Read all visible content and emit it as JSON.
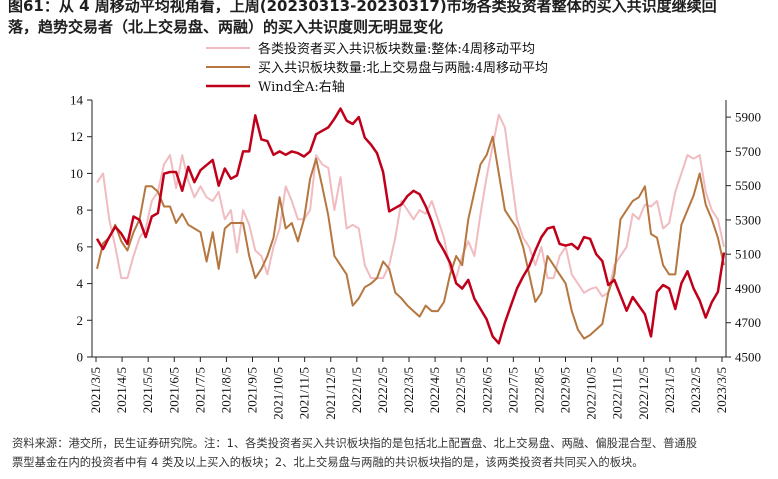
{
  "title": {
    "line1": "图61：从 4 周移动平均视角看，上周(20230313-20230317)市场各类投资者整体的买入共识度继续回",
    "line2": "落，趋势交易者（北上交易盘、两融）的买入共识度则无明显变化"
  },
  "footnote": {
    "line1": "资料来源：港交所，民生证券研究院。注：1、各类投资者买入共识板块指的是包括北上配置盘、北上交易盘、两融、偏股混合型、普通股",
    "line2": "票型基金在内的投资者中有 4 类及以上买入的板块；2、北上交易盘与两融的共识板块指的是，该两类投资者共同买入的板块。"
  },
  "colors": {
    "overall": "#f0bcc1",
    "north_margin": "#b5773f",
    "wind": "#c0001a"
  },
  "chart_data": {
    "type": "line",
    "x_tick_labels": [
      "2021/3/5",
      "2021/4/5",
      "2021/5/5",
      "2021/6/5",
      "2021/7/5",
      "2021/8/5",
      "2021/9/5",
      "2021/10/5",
      "2021/11/5",
      "2021/12/5",
      "2022/1/5",
      "2022/2/5",
      "2022/3/5",
      "2022/4/5",
      "2022/5/5",
      "2022/6/5",
      "2022/7/5",
      "2022/8/5",
      "2022/9/5",
      "2022/10/5",
      "2022/11/5",
      "2022/12/5",
      "2023/1/5",
      "2023/2/5",
      "2023/3/5"
    ],
    "left_axis": {
      "min": 0,
      "max": 14,
      "ticks": [
        0,
        2,
        4,
        6,
        8,
        10,
        12,
        14
      ]
    },
    "right_axis": {
      "min": 4500,
      "max": 6000,
      "ticks": [
        4500,
        4700,
        4900,
        5100,
        5300,
        5500,
        5700,
        5900
      ]
    },
    "series": [
      {
        "name": "各类投资者买入共识板块数量:整体:4周移动平均",
        "axis": "left",
        "values": [
          9.5,
          10.0,
          7.5,
          6.0,
          4.3,
          4.3,
          5.5,
          6.5,
          7.0,
          8.5,
          9.0,
          10.5,
          11.0,
          9.2,
          11.0,
          9.6,
          8.7,
          9.3,
          8.7,
          8.5,
          9.0,
          7.5,
          8.0,
          5.7,
          8.0,
          7.2,
          5.8,
          5.5,
          4.5,
          6.0,
          7.0,
          9.3,
          8.5,
          7.5,
          7.5,
          8.0,
          11.0,
          10.5,
          10.3,
          8.0,
          9.8,
          7.0,
          7.2,
          7.0,
          5.0,
          4.3,
          4.3,
          4.3,
          5.0,
          6.5,
          8.5,
          8.0,
          7.5,
          8.0,
          7.8,
          8.5,
          7.5,
          6.5,
          4.8,
          4.3,
          5.5,
          6.3,
          5.5,
          7.8,
          9.8,
          11.5,
          13.2,
          12.5,
          10.0,
          7.5,
          6.5,
          6.0,
          5.0,
          6.0,
          4.3,
          4.3,
          5.5,
          6.0,
          4.5,
          4.0,
          3.5,
          3.7,
          3.8,
          3.3,
          3.5,
          5.0,
          5.5,
          6.0,
          7.8,
          7.5,
          8.3,
          8.2,
          8.5,
          7.0,
          7.3,
          9.0,
          10.0,
          11.0,
          10.8,
          11.0,
          9.0,
          8.0,
          7.5,
          6.0
        ]
      },
      {
        "name": "买入共识板块数量:北上交易盘与两融:4周移动平均",
        "axis": "left",
        "values": [
          4.8,
          6.2,
          6.5,
          7.2,
          6.3,
          5.8,
          6.8,
          7.5,
          9.3,
          9.3,
          9.0,
          8.2,
          8.2,
          7.3,
          7.8,
          7.2,
          7.0,
          6.8,
          5.2,
          6.8,
          4.8,
          7.0,
          7.3,
          7.3,
          7.3,
          5.5,
          4.3,
          4.8,
          5.5,
          6.5,
          8.7,
          7.0,
          7.3,
          6.3,
          7.5,
          9.7,
          10.8,
          9.3,
          7.7,
          5.5,
          5.0,
          4.5,
          2.8,
          3.2,
          3.8,
          4.0,
          4.3,
          5.2,
          4.8,
          3.5,
          3.2,
          2.8,
          2.5,
          2.2,
          2.8,
          2.5,
          2.5,
          3.0,
          4.5,
          5.5,
          5.0,
          7.5,
          9.0,
          10.5,
          11.0,
          12.0,
          10.0,
          8.0,
          7.5,
          7.0,
          6.0,
          4.5,
          3.0,
          3.5,
          5.5,
          5.0,
          4.5,
          4.0,
          2.5,
          1.5,
          1.0,
          1.2,
          1.5,
          1.8,
          3.5,
          4.5,
          7.5,
          8.0,
          8.5,
          8.7,
          9.3,
          6.7,
          6.5,
          5.0,
          4.5,
          4.5,
          7.2,
          8.0,
          8.8,
          10.0,
          8.3,
          7.5,
          6.5,
          5.0
        ]
      },
      {
        "name": "Wind全A:右轴",
        "axis": "right",
        "values": [
          5190,
          5130,
          5200,
          5260,
          5220,
          5160,
          5320,
          5300,
          5200,
          5320,
          5340,
          5570,
          5580,
          5580,
          5470,
          5610,
          5520,
          5590,
          5620,
          5650,
          5500,
          5600,
          5540,
          5560,
          5700,
          5700,
          5910,
          5770,
          5760,
          5680,
          5700,
          5680,
          5700,
          5690,
          5670,
          5700,
          5800,
          5820,
          5840,
          5890,
          5950,
          5880,
          5860,
          5900,
          5780,
          5740,
          5690,
          5580,
          5350,
          5370,
          5390,
          5440,
          5470,
          5450,
          5380,
          5290,
          5180,
          5120,
          5050,
          4930,
          4900,
          4950,
          4840,
          4780,
          4720,
          4620,
          4580,
          4700,
          4800,
          4900,
          4970,
          5030,
          5120,
          5200,
          5250,
          5260,
          5160,
          5150,
          5160,
          5130,
          5200,
          5190,
          5100,
          5060,
          4920,
          4950,
          4860,
          4770,
          4850,
          4800,
          4750,
          4620,
          4880,
          4920,
          4900,
          4780,
          4930,
          5000,
          4900,
          4830,
          4730,
          4820,
          4880,
          5110
        ]
      }
    ]
  }
}
